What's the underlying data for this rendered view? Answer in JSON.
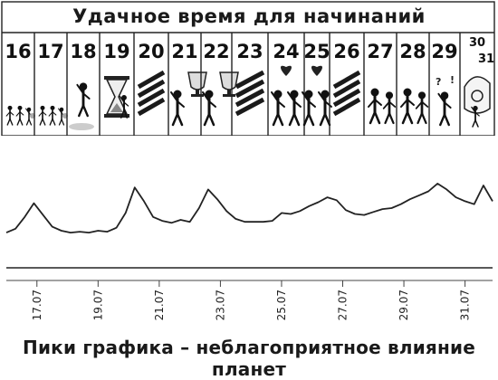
{
  "header": {
    "title": "Удачное время для начинаний"
  },
  "calendar": {
    "days": [
      {
        "label": "16",
        "icon": "people-walking-icon",
        "hatched": false
      },
      {
        "label": "17",
        "icon": "people-walking-icon",
        "hatched": false
      },
      {
        "label": "18",
        "icon": "person-waving-icon",
        "hatched": false
      },
      {
        "label": "19",
        "icon": "hourglass-icon",
        "hatched": false
      },
      {
        "label": "20",
        "icon": "",
        "hatched": true
      },
      {
        "label": "21",
        "icon": "trophy-cup-icon",
        "hatched": false
      },
      {
        "label": "22",
        "icon": "trophy-cup-icon",
        "hatched": false
      },
      {
        "label": "23",
        "icon": "",
        "hatched": true
      },
      {
        "label": "24",
        "icon": "couple-heart-icon",
        "hatched": false
      },
      {
        "label": "25",
        "icon": "couple-heart-icon",
        "hatched": false
      },
      {
        "label": "26",
        "icon": "",
        "hatched": true
      },
      {
        "label": "27",
        "icon": "handshake-icon",
        "hatched": false
      },
      {
        "label": "28",
        "icon": "handshake-icon",
        "hatched": false
      },
      {
        "label": "29",
        "icon": "confused-person-icon",
        "hatched": false
      },
      {
        "label": "30",
        "label2": "31",
        "icon": "telephone-icon",
        "hatched": false
      }
    ]
  },
  "chart_data": {
    "type": "line",
    "series": [
      {
        "x": [
          16,
          16.3,
          16.6,
          16.9,
          17.2,
          17.5,
          17.8,
          18.1,
          18.4,
          18.7,
          19.0,
          19.3,
          19.6,
          19.9,
          20.2,
          20.5,
          20.8,
          21.1,
          21.4,
          21.7,
          22.0,
          22.3,
          22.6,
          22.9,
          23.2,
          23.5,
          23.8,
          24.1,
          24.4,
          24.7,
          25.0,
          25.3,
          25.6,
          25.9,
          26.2,
          26.5,
          26.8,
          27.1,
          27.4,
          27.7,
          28.0,
          28.3,
          28.6,
          28.9,
          29.2,
          29.5,
          29.8,
          30.1,
          30.4,
          30.7,
          31.0,
          31.3,
          31.6,
          31.9
        ],
        "y": [
          1.0,
          1.4,
          2.6,
          4.0,
          2.8,
          1.6,
          1.2,
          1.0,
          1.1,
          1.0,
          1.2,
          1.1,
          1.5,
          3.0,
          5.6,
          4.2,
          2.6,
          2.2,
          2.0,
          2.3,
          2.1,
          3.5,
          5.4,
          4.4,
          3.2,
          2.4,
          2.1,
          2.1,
          2.1,
          2.2,
          3.0,
          2.9,
          3.2,
          3.7,
          4.1,
          4.6,
          4.3,
          3.3,
          2.9,
          2.8,
          3.1,
          3.4,
          3.5,
          3.9,
          4.4,
          4.8,
          5.2,
          6.0,
          5.4,
          4.6,
          4.2,
          3.9,
          5.8,
          4.2
        ]
      }
    ],
    "xticks": [
      "17.07",
      "19.07",
      "21.07",
      "23.07",
      "25.07",
      "27.07",
      "29.07",
      "31.07"
    ],
    "xtick_values": [
      17,
      19,
      21,
      23,
      25,
      27,
      29,
      31
    ],
    "xlim": [
      16,
      31.9
    ],
    "ylim": [
      0,
      7
    ],
    "grid": false,
    "legend": "none"
  },
  "footer": {
    "caption": "Пики графика – неблагоприятное влияние планет"
  }
}
